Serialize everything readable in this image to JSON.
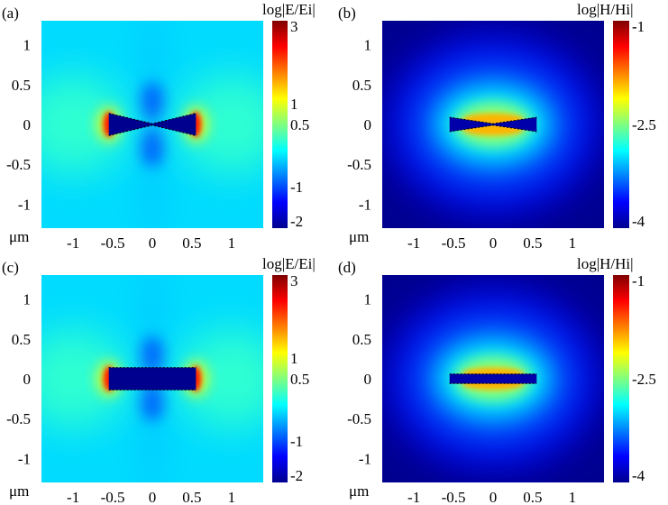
{
  "chart_data": [
    {
      "type": "heatmap",
      "panel_label": "(a)",
      "colorbar_label": "log|E/Ei|",
      "quantity": "E",
      "geometry": "bowtie",
      "xticks": [
        "-1",
        "-0.5",
        "0",
        "0.5",
        "1"
      ],
      "yticks": [
        "1",
        "0.5",
        "0",
        "-0.5",
        "-1"
      ],
      "unit_label": "μm",
      "xlim": [
        -1.4,
        1.4
      ],
      "ylim": [
        -1.3,
        1.3
      ],
      "colorbar_ticks": [
        "3",
        "1",
        "0.5",
        "-1",
        "-2"
      ],
      "colorbar_range": [
        -2,
        3
      ],
      "background_level": -0.3,
      "conductor_level": -2
    },
    {
      "type": "heatmap",
      "panel_label": "(b)",
      "colorbar_label": "log|H/Hi|",
      "quantity": "H",
      "geometry": "bowtie",
      "xticks": [
        "-1",
        "-0.5",
        "0",
        "0.5",
        "1"
      ],
      "yticks": [
        "1",
        "0.5",
        "0",
        "-0.5",
        "-1"
      ],
      "unit_label": "μm",
      "xlim": [
        -1.4,
        1.4
      ],
      "ylim": [
        -1.3,
        1.3
      ],
      "colorbar_ticks": [
        "-1",
        "-2.5",
        "-4"
      ],
      "colorbar_range": [
        -4,
        -1
      ],
      "background_level": -4,
      "peak_level": -1
    },
    {
      "type": "heatmap",
      "panel_label": "(c)",
      "colorbar_label": "log|E/Ei|",
      "quantity": "E",
      "geometry": "bar",
      "xticks": [
        "-1",
        "-0.5",
        "0",
        "0.5",
        "1"
      ],
      "yticks": [
        "1",
        "0.5",
        "0",
        "-0.5",
        "-1"
      ],
      "unit_label": "μm",
      "xlim": [
        -1.4,
        1.4
      ],
      "ylim": [
        -1.3,
        1.3
      ],
      "colorbar_ticks": [
        "3",
        "1",
        "0.5",
        "-1",
        "-2"
      ],
      "colorbar_range": [
        -2,
        3
      ],
      "background_level": -0.3,
      "conductor_level": -2
    },
    {
      "type": "heatmap",
      "panel_label": "(d)",
      "colorbar_label": "log|H/Hi|",
      "quantity": "H",
      "geometry": "bar",
      "xticks": [
        "-1",
        "-0.5",
        "0",
        "0.5",
        "1"
      ],
      "yticks": [
        "1",
        "0.5",
        "0",
        "-0.5",
        "-1"
      ],
      "unit_label": "μm",
      "xlim": [
        -1.4,
        1.4
      ],
      "ylim": [
        -1.3,
        1.3
      ],
      "colorbar_ticks": [
        "-1",
        "-2.5",
        "-4"
      ],
      "colorbar_range": [
        -4,
        -1
      ],
      "background_level": -4,
      "peak_level": -1
    }
  ]
}
